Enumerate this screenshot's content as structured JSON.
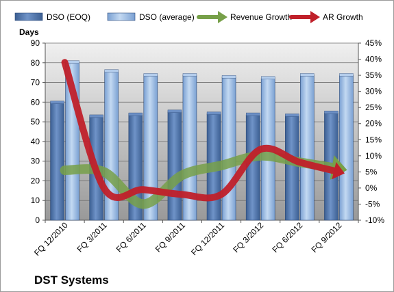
{
  "chart_data": {
    "type": "bar",
    "title": "DST Systems",
    "ylabel_left": "Days",
    "categories": [
      "FQ 12/2010",
      "FQ 3/2011",
      "FQ 6/2011",
      "FQ 9/2011",
      "FQ 12/2011",
      "FQ 3/2012",
      "FQ 6/2012",
      "FQ 9/2012"
    ],
    "series": [
      {
        "name": "DSO (EOQ)",
        "kind": "bar",
        "axis": "left",
        "color": "#4a6fa5",
        "values": [
          59.5,
          52.5,
          53.5,
          55,
          54,
          53.5,
          53,
          54.5
        ]
      },
      {
        "name": "DSO (average)",
        "kind": "bar",
        "axis": "left",
        "color": "#8fb3e0",
        "values": [
          80,
          75.5,
          73.5,
          73.5,
          72.5,
          72,
          73.5,
          73.5
        ]
      },
      {
        "name": "Revenue Growth",
        "kind": "line",
        "axis": "right",
        "color": "#77a049",
        "values": [
          5.5,
          5,
          -5,
          4,
          7,
          10,
          8,
          6
        ]
      },
      {
        "name": "AR Growth",
        "kind": "line",
        "axis": "right",
        "color": "#c0202a",
        "values": [
          39,
          0,
          -0.5,
          -2,
          -2,
          12,
          8,
          5
        ]
      }
    ],
    "y_left": {
      "min": 0,
      "max": 90,
      "ticks": [
        "0",
        "10",
        "20",
        "30",
        "40",
        "50",
        "60",
        "70",
        "80",
        "90"
      ]
    },
    "y_right": {
      "min": -10,
      "max": 45,
      "ticks": [
        "-10%",
        "-5%",
        "0%",
        "5%",
        "10%",
        "15%",
        "20%",
        "25%",
        "30%",
        "35%",
        "40%",
        "45%"
      ]
    },
    "grid": true,
    "legend": "top"
  }
}
